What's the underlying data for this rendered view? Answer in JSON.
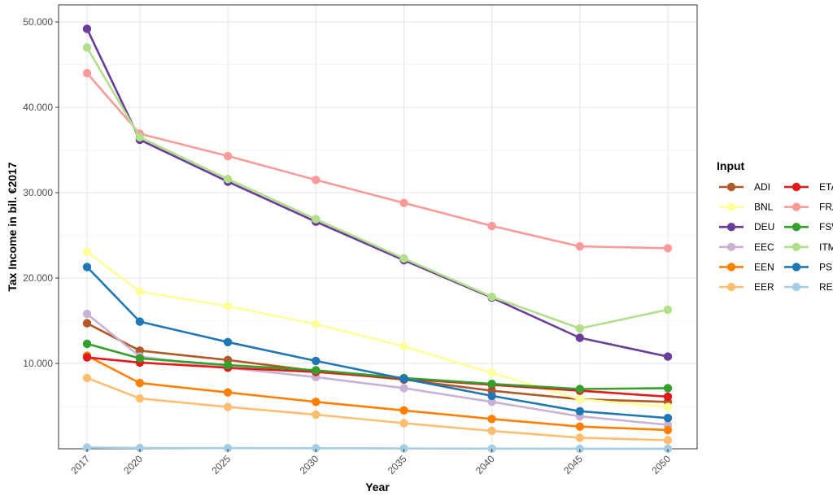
{
  "chart_data": {
    "type": "line",
    "xlabel": "Year",
    "ylabel": "Tax Income in bil. €2017",
    "x": [
      2017,
      2020,
      2025,
      2030,
      2035,
      2040,
      2045,
      2050
    ],
    "x_tick_labels": [
      "2017",
      "2020",
      "2025",
      "2030",
      "2035",
      "2040",
      "2045",
      "2050"
    ],
    "xlim": [
      2017,
      2050
    ],
    "ylim": [
      0,
      52000
    ],
    "y_ticks": [
      10000,
      20000,
      30000,
      40000,
      50000
    ],
    "y_tick_labels": [
      "10.000",
      "20.000",
      "30.000",
      "40.000",
      "50.000"
    ],
    "grid": true,
    "legend": {
      "title": "Input",
      "placement": "right",
      "columns": 2
    },
    "series": [
      {
        "name": "ADI",
        "color": "#b15928",
        "values": [
          14700,
          11500,
          10400,
          9100,
          8100,
          6800,
          5800,
          5500
        ]
      },
      {
        "name": "BNL",
        "color": "#ffff99",
        "values": [
          23100,
          18400,
          16700,
          14600,
          12000,
          8900,
          5800,
          4900
        ]
      },
      {
        "name": "DEU",
        "color": "#6a3d9a",
        "values": [
          49200,
          36200,
          31300,
          26600,
          22100,
          17700,
          13000,
          10800
        ]
      },
      {
        "name": "EEC",
        "color": "#cab2d6",
        "values": [
          15800,
          10800,
          9500,
          8400,
          7100,
          5500,
          3800,
          2800
        ]
      },
      {
        "name": "EEN",
        "color": "#ff7f00",
        "values": [
          10900,
          7700,
          6600,
          5500,
          4500,
          3500,
          2600,
          2200
        ]
      },
      {
        "name": "EER",
        "color": "#fdbf6f",
        "values": [
          8300,
          5900,
          4900,
          4000,
          3000,
          2100,
          1300,
          1000
        ]
      },
      {
        "name": "ETA",
        "color": "#e31a1c",
        "values": [
          10700,
          10100,
          9500,
          9000,
          8200,
          7500,
          6800,
          6100
        ]
      },
      {
        "name": "FRA",
        "color": "#fb9a99",
        "values": [
          44000,
          36900,
          34300,
          31500,
          28800,
          26100,
          23700,
          23500
        ]
      },
      {
        "name": "FSW",
        "color": "#33a02c",
        "values": [
          12300,
          10600,
          9800,
          9200,
          8300,
          7600,
          7000,
          7100
        ]
      },
      {
        "name": "ITM",
        "color": "#b2df8a",
        "values": [
          47000,
          36500,
          31600,
          26900,
          22300,
          17800,
          14100,
          16300
        ]
      },
      {
        "name": "PSP",
        "color": "#1f78b4",
        "values": [
          21300,
          14900,
          12500,
          10300,
          8200,
          6200,
          4400,
          3600
        ]
      },
      {
        "name": "REU",
        "color": "#a6cee3",
        "values": [
          150,
          100,
          80,
          70,
          40,
          20,
          10,
          0
        ]
      }
    ]
  }
}
